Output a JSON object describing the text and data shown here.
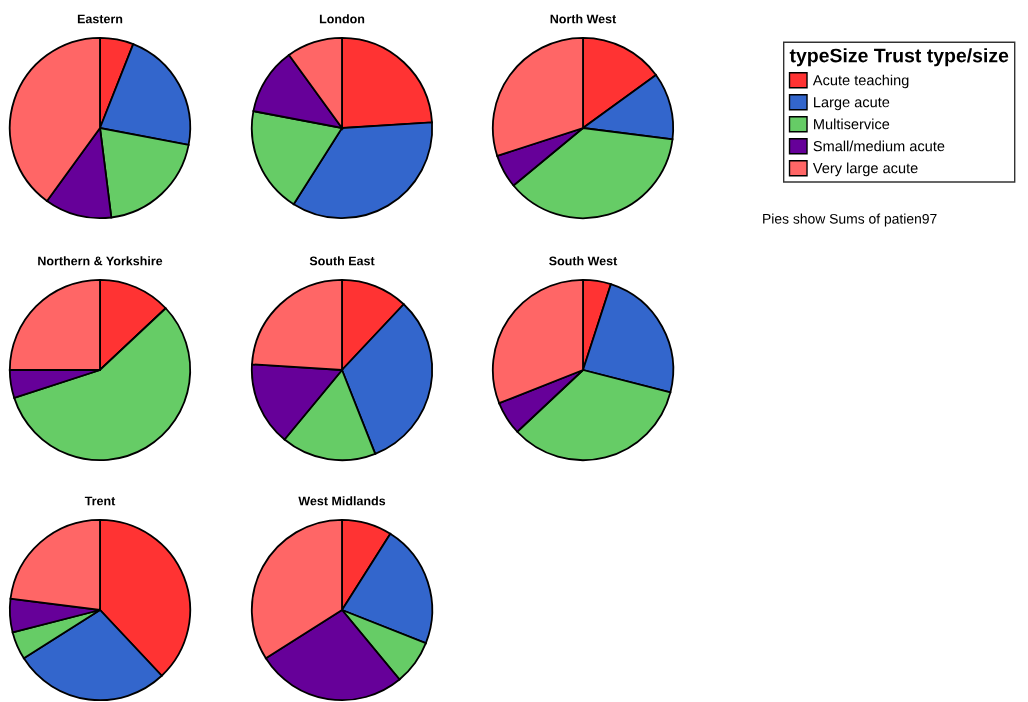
{
  "chart_data": [
    {
      "type": "pie",
      "title": "Eastern",
      "categories": [
        "Acute teaching",
        "Large acute",
        "Multiservice",
        "Small/medium acute",
        "Very large acute"
      ],
      "values": [
        6,
        22,
        20,
        12,
        40
      ],
      "colors": [
        "#ff3333",
        "#3366cc",
        "#66cc66",
        "#660099",
        "#ff6666"
      ],
      "legend": "right",
      "legend_title": "typeSize Trust type/size",
      "annotations": [
        "Pies show Sums of patien97"
      ]
    },
    {
      "type": "pie",
      "title": "London",
      "categories": [
        null,
        null,
        null,
        null,
        null
      ],
      "values": [
        24,
        35,
        19,
        12,
        10
      ],
      "colors": [
        "#ff3333",
        "#3366cc",
        "#66cc66",
        "#660099",
        "#ff6666"
      ]
    },
    {
      "type": "pie",
      "title": "North West",
      "categories": [
        null,
        null,
        null,
        null,
        null
      ],
      "values": [
        15,
        12,
        37,
        6,
        30
      ],
      "colors": [
        "#ff3333",
        "#3366cc",
        "#66cc66",
        "#660099",
        "#ff6666"
      ]
    },
    {
      "type": "pie",
      "title": "Northern & Yorkshire",
      "categories": [
        null,
        null,
        null,
        null,
        null
      ],
      "values": [
        13,
        0,
        57,
        5,
        25
      ],
      "colors": [
        "#ff3333",
        "#3366cc",
        "#66cc66",
        "#660099",
        "#ff6666"
      ]
    },
    {
      "type": "pie",
      "title": "South East",
      "categories": [
        null,
        null,
        null,
        null,
        null
      ],
      "values": [
        12,
        32,
        17,
        15,
        24
      ],
      "colors": [
        "#ff3333",
        "#3366cc",
        "#66cc66",
        "#660099",
        "#ff6666"
      ]
    },
    {
      "type": "pie",
      "title": "South West",
      "categories": [
        null,
        null,
        null,
        null,
        null
      ],
      "values": [
        5,
        24,
        34,
        6,
        31
      ],
      "colors": [
        "#ff3333",
        "#3366cc",
        "#66cc66",
        "#660099",
        "#ff6666"
      ]
    },
    {
      "type": "pie",
      "title": "Trent",
      "categories": [
        null,
        null,
        null,
        null,
        null
      ],
      "values": [
        38,
        28,
        5,
        6,
        23
      ],
      "colors": [
        "#ff3333",
        "#3366cc",
        "#66cc66",
        "#660099",
        "#ff6666"
      ]
    },
    {
      "type": "pie",
      "title": "West Midlands",
      "categories": [
        null,
        null,
        null,
        null,
        null
      ],
      "values": [
        9,
        22,
        8,
        27,
        34
      ],
      "colors": [
        "#ff3333",
        "#3366cc",
        "#66cc66",
        "#660099",
        "#ff6666"
      ]
    }
  ]
}
